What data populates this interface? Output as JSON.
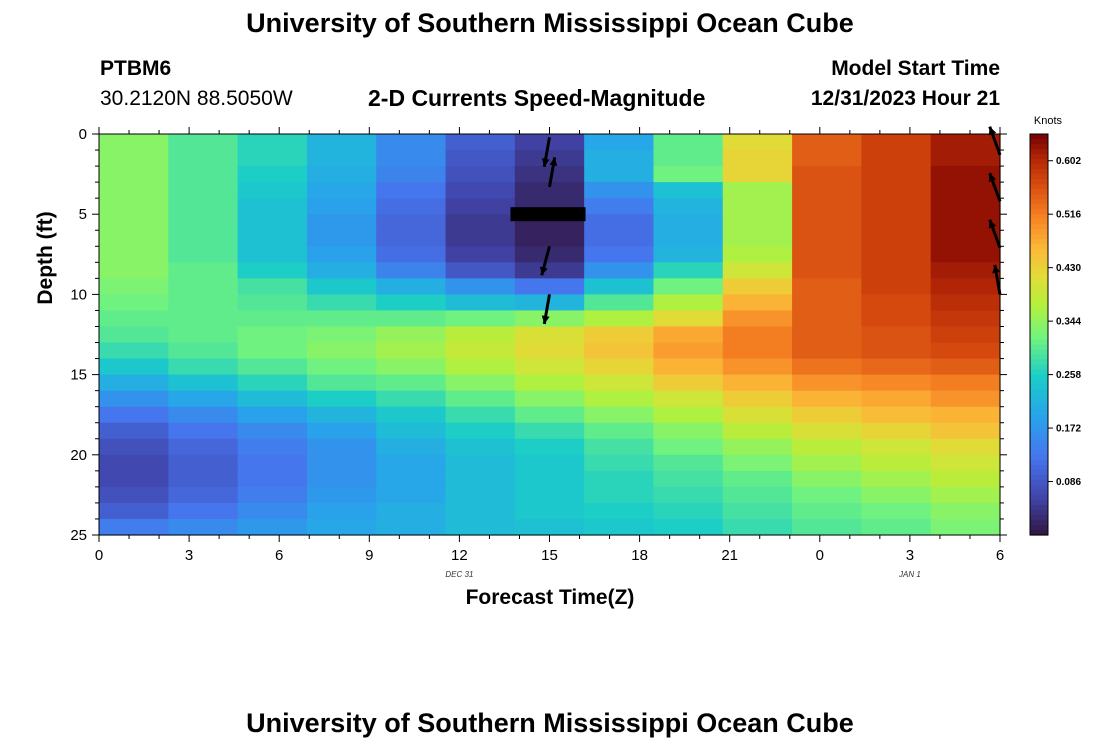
{
  "title": "University of Southern Mississippi Ocean Cube",
  "title_bottom": "University of Southern Mississippi Ocean Cube",
  "station": {
    "id": "PTBM6",
    "coords": "30.2120N  88.5050W"
  },
  "subtitle": "2-D Currents Speed-Magnitude",
  "model_start": {
    "label": "Model Start Time",
    "value": "12/31/2023 Hour 21"
  },
  "colorbar": {
    "unit": "Knots",
    "ticks": [
      "0.602",
      "0.516",
      "0.430",
      "0.344",
      "0.258",
      "0.172",
      "0.086"
    ],
    "tick_values": [
      0.602,
      0.516,
      0.43,
      0.344,
      0.258,
      0.172,
      0.086
    ],
    "range": [
      0.0,
      0.645
    ]
  },
  "date_labels": [
    {
      "text": "DEC 31",
      "hour_index": 12
    },
    {
      "text": "JAN 1",
      "hour_index": 27
    }
  ],
  "chart_data": {
    "type": "heatmap",
    "title": "2-D Currents Speed-Magnitude",
    "xlabel": "Forecast Time(Z)",
    "ylabel": "Depth (ft)",
    "x_hours": [
      0,
      3,
      6,
      9,
      12,
      15,
      18,
      21,
      24,
      27,
      30
    ],
    "x_tick_labels": [
      "0",
      "3",
      "6",
      "9",
      "12",
      "15",
      "18",
      "21",
      "0",
      "3",
      "6"
    ],
    "xlim": [
      0,
      30
    ],
    "y_tick_labels": [
      "0",
      "5",
      "10",
      "15",
      "20",
      "25"
    ],
    "y_tick_values": [
      0,
      5,
      10,
      15,
      20,
      25
    ],
    "ylim": [
      0,
      25
    ],
    "depth_bins": [
      0,
      1,
      2,
      3,
      4,
      5,
      6,
      7,
      8,
      9,
      10,
      11,
      12,
      13,
      14,
      15,
      16,
      17,
      18,
      19,
      20,
      21,
      22,
      23,
      24
    ],
    "speed_grid_knots": [
      [
        0.34,
        0.3,
        0.27,
        0.22,
        0.16,
        0.1,
        0.06,
        0.2,
        0.31,
        0.42,
        0.55,
        0.58,
        0.62
      ],
      [
        0.34,
        0.3,
        0.27,
        0.22,
        0.16,
        0.09,
        0.05,
        0.21,
        0.31,
        0.43,
        0.55,
        0.58,
        0.62
      ],
      [
        0.34,
        0.3,
        0.26,
        0.21,
        0.15,
        0.08,
        0.04,
        0.21,
        0.32,
        0.43,
        0.56,
        0.58,
        0.63
      ],
      [
        0.34,
        0.3,
        0.25,
        0.2,
        0.13,
        0.07,
        0.03,
        0.17,
        0.24,
        0.36,
        0.56,
        0.58,
        0.63
      ],
      [
        0.34,
        0.3,
        0.24,
        0.19,
        0.12,
        0.06,
        0.03,
        0.14,
        0.22,
        0.36,
        0.56,
        0.58,
        0.63
      ],
      [
        0.34,
        0.3,
        0.24,
        0.18,
        0.11,
        0.05,
        0.02,
        0.12,
        0.21,
        0.36,
        0.56,
        0.58,
        0.63
      ],
      [
        0.34,
        0.3,
        0.24,
        0.18,
        0.11,
        0.05,
        0.02,
        0.12,
        0.21,
        0.36,
        0.56,
        0.58,
        0.63
      ],
      [
        0.34,
        0.3,
        0.24,
        0.19,
        0.12,
        0.06,
        0.03,
        0.13,
        0.22,
        0.37,
        0.56,
        0.58,
        0.63
      ],
      [
        0.34,
        0.31,
        0.26,
        0.21,
        0.15,
        0.09,
        0.05,
        0.17,
        0.27,
        0.4,
        0.56,
        0.58,
        0.62
      ],
      [
        0.33,
        0.31,
        0.29,
        0.25,
        0.21,
        0.17,
        0.13,
        0.24,
        0.32,
        0.44,
        0.55,
        0.58,
        0.61
      ],
      [
        0.32,
        0.31,
        0.3,
        0.28,
        0.26,
        0.23,
        0.22,
        0.3,
        0.37,
        0.47,
        0.55,
        0.57,
        0.6
      ],
      [
        0.31,
        0.31,
        0.31,
        0.31,
        0.31,
        0.32,
        0.34,
        0.37,
        0.42,
        0.5,
        0.55,
        0.57,
        0.59
      ],
      [
        0.3,
        0.31,
        0.32,
        0.33,
        0.35,
        0.38,
        0.41,
        0.44,
        0.48,
        0.52,
        0.55,
        0.56,
        0.58
      ],
      [
        0.28,
        0.3,
        0.32,
        0.34,
        0.36,
        0.39,
        0.42,
        0.45,
        0.49,
        0.52,
        0.55,
        0.56,
        0.57
      ],
      [
        0.25,
        0.28,
        0.3,
        0.32,
        0.34,
        0.37,
        0.4,
        0.43,
        0.47,
        0.5,
        0.53,
        0.54,
        0.55
      ],
      [
        0.21,
        0.24,
        0.27,
        0.3,
        0.31,
        0.34,
        0.37,
        0.4,
        0.44,
        0.47,
        0.5,
        0.51,
        0.52
      ],
      [
        0.17,
        0.2,
        0.23,
        0.26,
        0.28,
        0.31,
        0.34,
        0.37,
        0.4,
        0.44,
        0.47,
        0.48,
        0.5
      ],
      [
        0.13,
        0.16,
        0.19,
        0.22,
        0.25,
        0.28,
        0.31,
        0.34,
        0.37,
        0.41,
        0.44,
        0.46,
        0.47
      ],
      [
        0.1,
        0.13,
        0.16,
        0.19,
        0.23,
        0.26,
        0.28,
        0.31,
        0.34,
        0.38,
        0.41,
        0.43,
        0.45
      ],
      [
        0.08,
        0.11,
        0.14,
        0.17,
        0.21,
        0.24,
        0.26,
        0.29,
        0.32,
        0.35,
        0.38,
        0.4,
        0.42
      ],
      [
        0.07,
        0.1,
        0.13,
        0.17,
        0.2,
        0.23,
        0.25,
        0.28,
        0.3,
        0.33,
        0.36,
        0.38,
        0.4
      ],
      [
        0.07,
        0.1,
        0.13,
        0.17,
        0.2,
        0.23,
        0.25,
        0.27,
        0.29,
        0.31,
        0.34,
        0.36,
        0.38
      ],
      [
        0.08,
        0.11,
        0.14,
        0.18,
        0.2,
        0.23,
        0.25,
        0.27,
        0.28,
        0.3,
        0.32,
        0.34,
        0.36
      ],
      [
        0.1,
        0.13,
        0.16,
        0.19,
        0.21,
        0.23,
        0.25,
        0.26,
        0.27,
        0.29,
        0.31,
        0.32,
        0.34
      ],
      [
        0.14,
        0.16,
        0.18,
        0.2,
        0.21,
        0.23,
        0.24,
        0.25,
        0.26,
        0.28,
        0.3,
        0.31,
        0.33
      ]
    ],
    "arrows": [
      {
        "hour": 15,
        "depth": 0.2,
        "dir_deg": 190
      },
      {
        "hour": 15,
        "depth": 3.3,
        "dir_deg": 10
      },
      {
        "hour": 15,
        "depth": 7.0,
        "dir_deg": 195
      },
      {
        "hour": 15,
        "depth": 10.0,
        "dir_deg": 190
      },
      {
        "hour": 30,
        "depth": 1.3,
        "dir_deg": 340
      },
      {
        "hour": 30,
        "depth": 4.2,
        "dir_deg": 340
      },
      {
        "hour": 30,
        "depth": 7.1,
        "dir_deg": 340
      },
      {
        "hour": 30,
        "depth": 10.0,
        "dir_deg": 350
      }
    ],
    "annotations": [
      {
        "type": "bar",
        "hour_start": 13.7,
        "hour_end": 16.2,
        "depth": 5.0
      }
    ]
  }
}
